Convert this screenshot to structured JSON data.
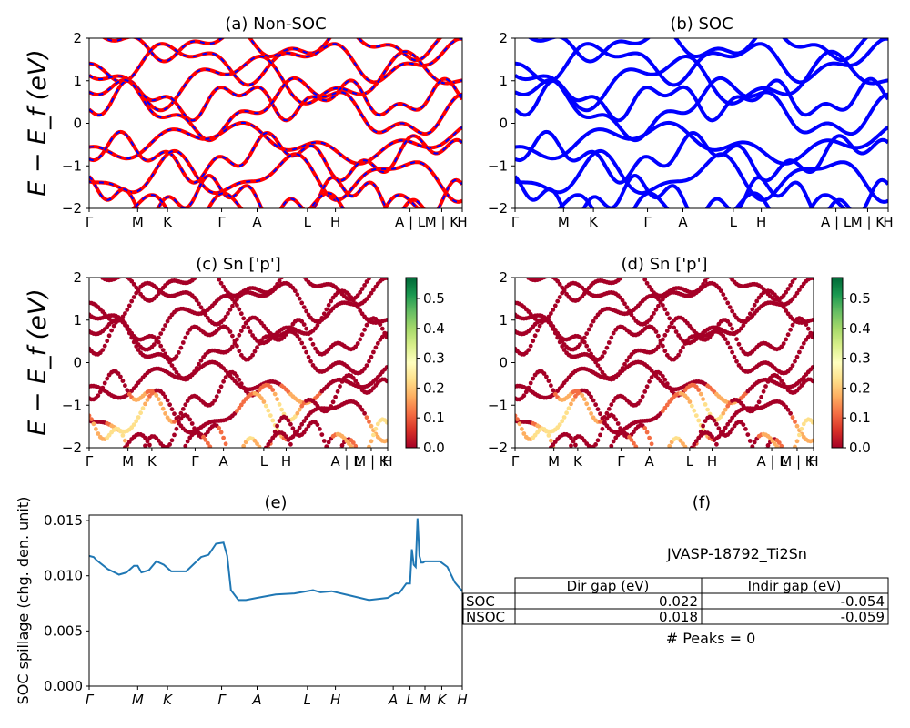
{
  "bands": {
    "ylabel": "E − E_f (eV)",
    "kticks": [
      "Γ",
      "M",
      "K",
      "Γ",
      "A",
      "L",
      "H",
      "A | L",
      "M | K",
      "H"
    ],
    "yticks": [
      -2,
      -1,
      0,
      1,
      2
    ],
    "ylim": [
      -2,
      2
    ]
  },
  "colorbar": {
    "ticks": [
      "0.0",
      "0.1",
      "0.2",
      "0.3",
      "0.4",
      "0.5"
    ],
    "range": [
      0,
      0.57
    ],
    "cmap": "RdYlGn"
  },
  "spillage": {
    "ylabel": "SOC spillage (chg. den. unit)",
    "yticks": [
      "0.000",
      "0.005",
      "0.010",
      "0.015"
    ],
    "kticks": [
      "Γ",
      "M",
      "K",
      "Γ",
      "A",
      "L",
      "H",
      "A",
      "L",
      "M",
      "K",
      "H"
    ]
  },
  "table": {
    "title": "(f)",
    "material": "JVASP-18792_Ti2Sn",
    "columns": [
      "Dir gap (eV)",
      "Indir gap (eV)"
    ],
    "rows": [
      {
        "label": "SOC",
        "dir": "0.022",
        "indir": "-0.054"
      },
      {
        "label": "NSOC",
        "dir": "0.018",
        "indir": "-0.059"
      }
    ],
    "peaks": "# Peaks = 0"
  },
  "chart_data": [
    {
      "type": "line",
      "title": "(a) Non-SOC",
      "ylabel": "E − E_f (eV)",
      "ylim": [
        -2,
        2
      ],
      "x_ticks": [
        "Γ",
        "M",
        "K",
        "Γ",
        "A",
        "L",
        "H",
        "A | L",
        "M | K",
        "H"
      ],
      "series": [
        {
          "name": "band structure (red)",
          "color": "#ff0000"
        },
        {
          "name": "band structure (blue dashed)",
          "color": "#0000ff"
        }
      ]
    },
    {
      "type": "line",
      "title": "(b) SOC",
      "ylim": [
        -2,
        2
      ],
      "x_ticks": [
        "Γ",
        "M",
        "K",
        "Γ",
        "A",
        "L",
        "H",
        "A | L",
        "M | K",
        "H"
      ],
      "series": [
        {
          "name": "band structure",
          "color": "#0000ff"
        }
      ]
    },
    {
      "type": "scatter",
      "title": "(c)  Sn ['p']",
      "ylabel": "E − E_f (eV)",
      "ylim": [
        -2,
        2
      ],
      "colorbar_ticks": [
        0.0,
        0.1,
        0.2,
        0.3,
        0.4,
        0.5
      ]
    },
    {
      "type": "scatter",
      "title": "(d) Sn ['p']",
      "ylim": [
        -2,
        2
      ],
      "colorbar_ticks": [
        0.0,
        0.1,
        0.2,
        0.3,
        0.4,
        0.5
      ]
    },
    {
      "type": "line",
      "title": "(e)",
      "ylabel": "SOC spillage (chg. den. unit)",
      "ylim": [
        0,
        0.0155
      ],
      "x_ticks": [
        "Γ",
        "M",
        "K",
        "Γ",
        "A",
        "L",
        "H",
        "A",
        "L",
        "M",
        "K",
        "H"
      ],
      "series": [
        {
          "name": "spillage",
          "color": "#1f77b4",
          "x": [
            0,
            0.012,
            0.02,
            0.05,
            0.08,
            0.1,
            0.12,
            0.13,
            0.14,
            0.16,
            0.18,
            0.2,
            0.22,
            0.26,
            0.3,
            0.32,
            0.34,
            0.36,
            0.37,
            0.38,
            0.4,
            0.42,
            0.45,
            0.5,
            0.55,
            0.6,
            0.62,
            0.65,
            0.7,
            0.75,
            0.8,
            0.82,
            0.83,
            0.835,
            0.85,
            0.86,
            0.865,
            0.87,
            0.875,
            0.88,
            0.885,
            0.89,
            0.895,
            0.9,
            0.92,
            0.94,
            0.96,
            0.98,
            1.0
          ],
          "y": [
            0.0118,
            0.0117,
            0.0114,
            0.0106,
            0.0101,
            0.0103,
            0.0109,
            0.0109,
            0.0103,
            0.0105,
            0.0113,
            0.011,
            0.0104,
            0.0104,
            0.0117,
            0.0119,
            0.0129,
            0.013,
            0.0118,
            0.0087,
            0.0078,
            0.0078,
            0.008,
            0.0083,
            0.0084,
            0.0087,
            0.0085,
            0.0086,
            0.0082,
            0.0078,
            0.008,
            0.0084,
            0.0084,
            0.0086,
            0.0093,
            0.0093,
            0.0124,
            0.011,
            0.0108,
            0.0152,
            0.0118,
            0.0112,
            0.0112,
            0.0113,
            0.0113,
            0.0113,
            0.0108,
            0.0094,
            0.0086
          ]
        }
      ]
    }
  ]
}
